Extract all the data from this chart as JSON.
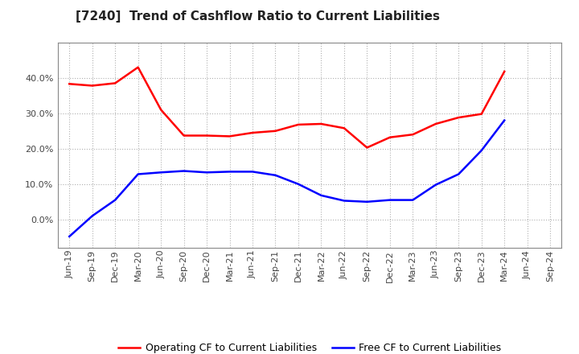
{
  "title": "[7240]  Trend of Cashflow Ratio to Current Liabilities",
  "x_labels": [
    "Jun-19",
    "Sep-19",
    "Dec-19",
    "Mar-20",
    "Jun-20",
    "Sep-20",
    "Dec-20",
    "Mar-21",
    "Jun-21",
    "Sep-21",
    "Dec-21",
    "Mar-22",
    "Jun-22",
    "Sep-22",
    "Dec-22",
    "Mar-23",
    "Jun-23",
    "Sep-23",
    "Dec-23",
    "Mar-24",
    "Jun-24",
    "Sep-24"
  ],
  "operating_cf": [
    0.383,
    0.378,
    0.385,
    0.43,
    0.31,
    0.237,
    0.237,
    0.235,
    0.245,
    0.25,
    0.268,
    0.27,
    0.258,
    0.203,
    0.232,
    0.24,
    0.27,
    0.288,
    0.298,
    0.418,
    null,
    null
  ],
  "free_cf": [
    -0.048,
    0.01,
    0.055,
    0.128,
    0.133,
    0.137,
    0.133,
    0.135,
    0.135,
    0.125,
    0.1,
    0.068,
    0.053,
    0.05,
    0.055,
    0.055,
    0.098,
    0.128,
    0.195,
    0.28,
    null,
    null
  ],
  "ylim": [
    -0.08,
    0.5
  ],
  "yticks": [
    0.0,
    0.1,
    0.2,
    0.3,
    0.4
  ],
  "operating_color": "#ff0000",
  "free_color": "#0000ff",
  "grid_color": "#b0b0b0",
  "background_color": "#ffffff",
  "title_fontsize": 11,
  "legend_fontsize": 9,
  "tick_fontsize": 8
}
